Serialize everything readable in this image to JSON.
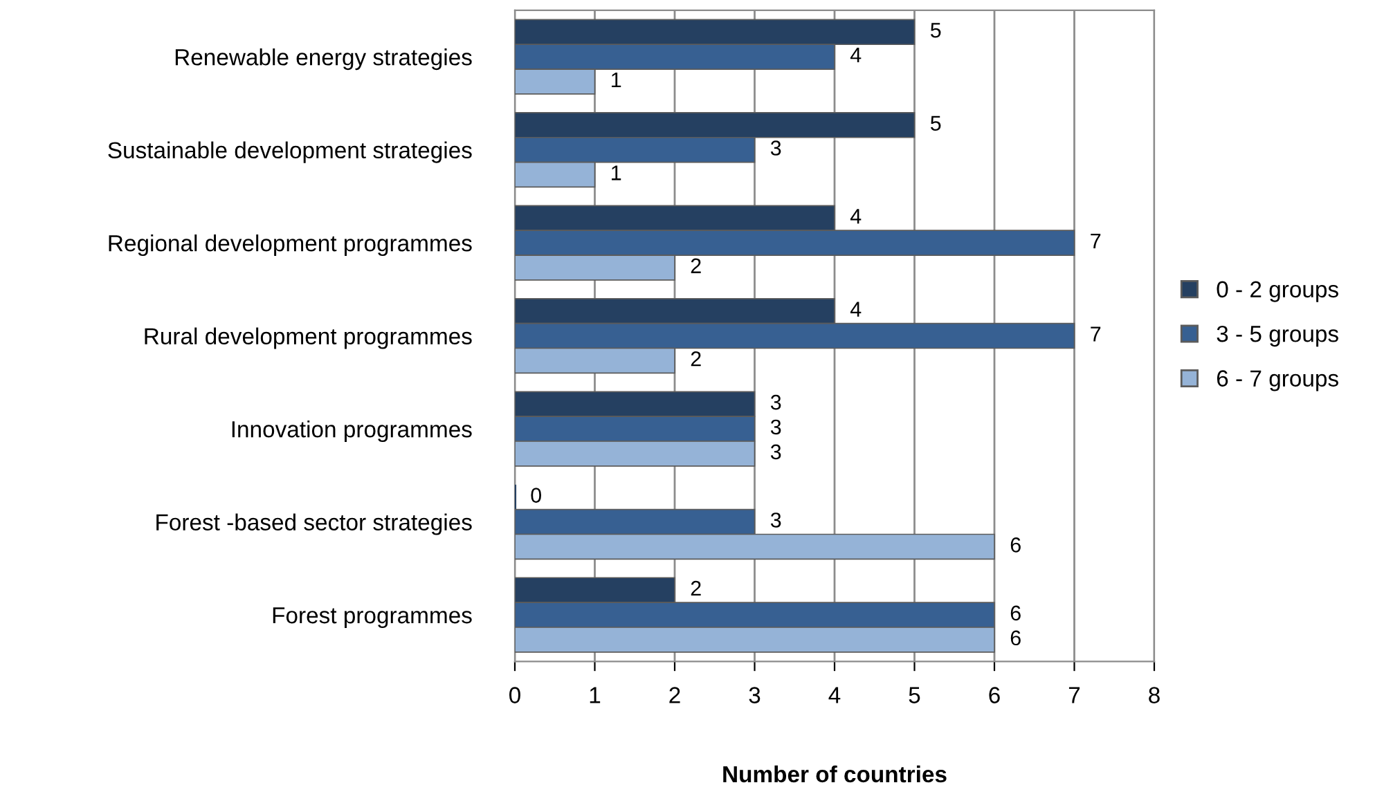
{
  "chart_data": {
    "type": "bar",
    "orientation": "horizontal",
    "xlabel": "Number of countries",
    "categories": [
      "Renewable energy strategies",
      "Sustainable development strategies",
      "Regional development programmes",
      "Rural development programmes",
      "Innovation programmes",
      "Forest -based sector strategies",
      "Forest programmes"
    ],
    "series": [
      {
        "name": "0 - 2 groups",
        "color": "#254061",
        "values": [
          5,
          5,
          4,
          4,
          3,
          0,
          2
        ]
      },
      {
        "name": "3 - 5 groups",
        "color": "#376092",
        "values": [
          4,
          3,
          7,
          7,
          3,
          3,
          6
        ]
      },
      {
        "name": "6 - 7 groups",
        "color": "#95b3d7",
        "values": [
          1,
          1,
          2,
          2,
          3,
          6,
          6
        ]
      }
    ],
    "xlim": [
      0,
      8
    ],
    "xticks": [
      0,
      1,
      2,
      3,
      4,
      5,
      6,
      7,
      8
    ],
    "grid": "x",
    "legend": "right",
    "data_labels": true
  }
}
